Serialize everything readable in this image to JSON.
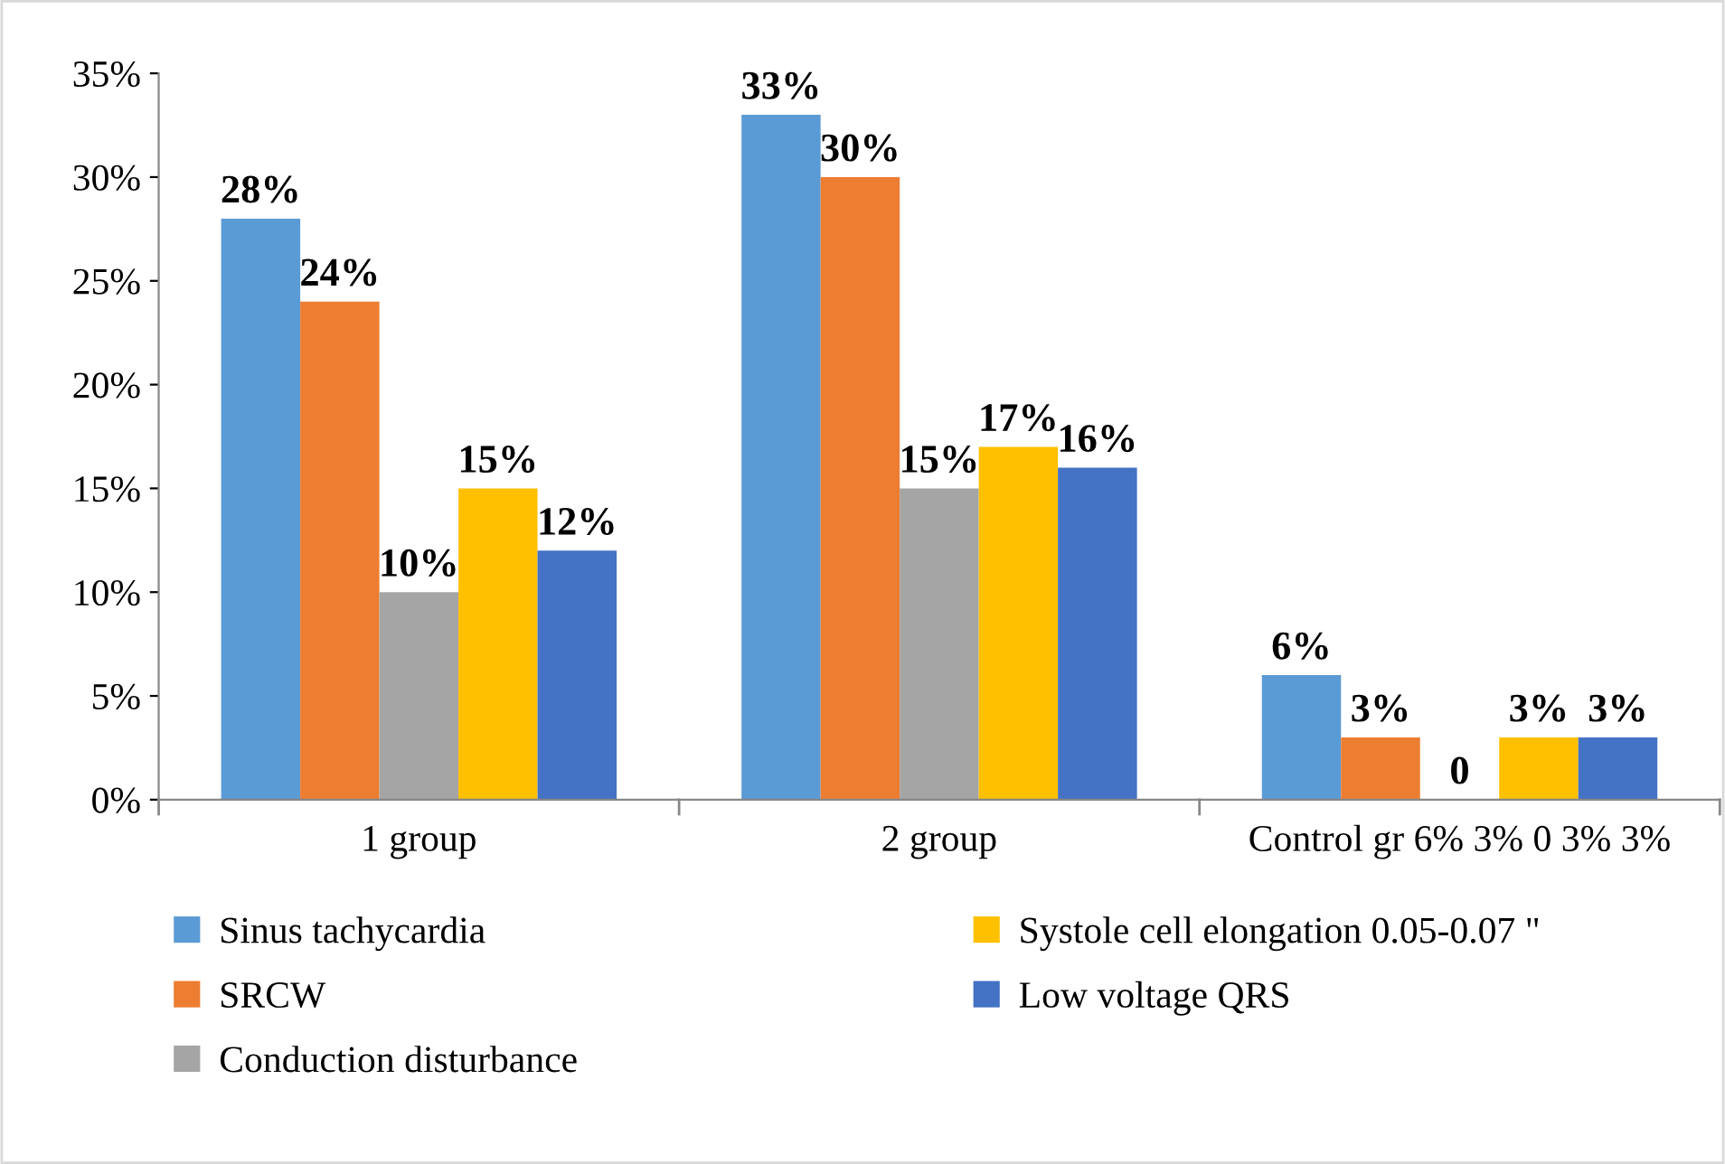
{
  "chart_data": {
    "type": "bar",
    "categories": [
      "1 group",
      "2 group",
      "Control gr 6% 3% 0 3% 3%"
    ],
    "series": [
      {
        "name": "Sinus tachycardia",
        "color": "#5b9bd5",
        "values": [
          28,
          33,
          6
        ],
        "value_labels": [
          "28%",
          "33%",
          "6%"
        ]
      },
      {
        "name": "SRCW",
        "color": "#ed7d31",
        "values": [
          24,
          30,
          3
        ],
        "value_labels": [
          "24%",
          "30%",
          "3%"
        ]
      },
      {
        "name": "Conduction disturbance",
        "color": "#a5a5a5",
        "values": [
          10,
          15,
          0
        ],
        "value_labels": [
          "10%",
          "15%",
          "0"
        ]
      },
      {
        "name": "Systole cell elongation 0.05-0.07 \"",
        "color": "#ffc000",
        "values": [
          15,
          17,
          3
        ],
        "value_labels": [
          "15%",
          "17%",
          "3%"
        ]
      },
      {
        "name": "Low voltage QRS",
        "color": "#4472c4",
        "values": [
          12,
          16,
          3
        ],
        "value_labels": [
          "12%",
          "16%",
          "3%"
        ]
      }
    ],
    "ylim": [
      0,
      35
    ],
    "yticks": [
      {
        "value": 0,
        "label": "0%"
      },
      {
        "value": 5,
        "label": "5%"
      },
      {
        "value": 10,
        "label": "10%"
      },
      {
        "value": 15,
        "label": "15%"
      },
      {
        "value": 20,
        "label": "20%"
      },
      {
        "value": 25,
        "label": "25%"
      },
      {
        "value": 30,
        "label": "30%"
      },
      {
        "value": 35,
        "label": "35%"
      }
    ],
    "grid": false,
    "legend": "bottom"
  }
}
